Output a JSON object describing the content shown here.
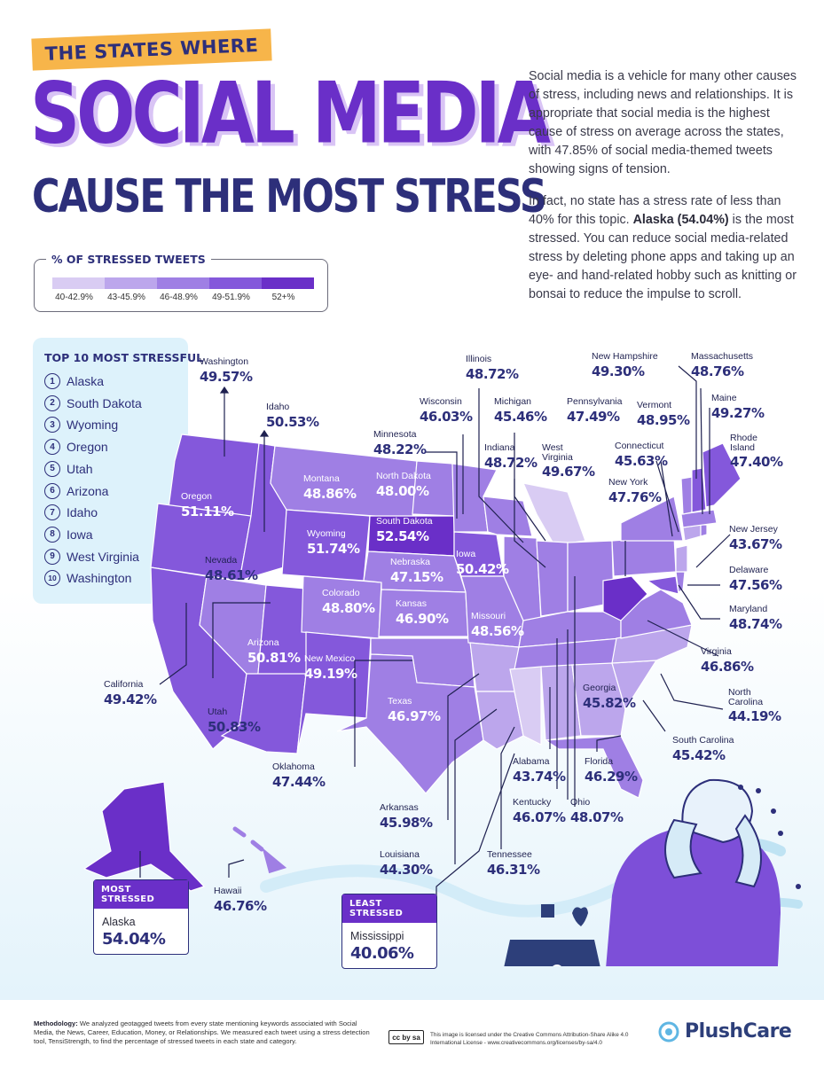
{
  "header": {
    "kicker": "THE STATES WHERE",
    "title": "SOCIAL MEDIA",
    "subtitle": "CAUSE THE MOST STRESS"
  },
  "intro": {
    "p1": "Social media is a vehicle for many other causes of stress, including news and relationships. It is appropriate that social media is the highest cause of stress on average across the states, with 47.85% of social media-themed tweets showing signs of tension.",
    "p2_a": "In fact, no state has a stress rate of less than 40% for this topic. ",
    "p2_bold": "Alaska (54.04%)",
    "p2_b": " is the most stressed. You can reduce social media-related stress by deleting phone apps and taking up an eye- and hand-related hobby such as knitting or bonsai to reduce the impulse to scroll."
  },
  "legend": {
    "title": "% OF STRESSED TWEETS",
    "bins": [
      {
        "label": "40-42.9%",
        "color": "#d9ccf3"
      },
      {
        "label": "43-45.9%",
        "color": "#bca6ec"
      },
      {
        "label": "46-48.9%",
        "color": "#9f7fe4"
      },
      {
        "label": "49-51.9%",
        "color": "#8458db"
      },
      {
        "label": "52+%",
        "color": "#6a2fc8"
      }
    ]
  },
  "top10": {
    "title": "TOP 10 MOST STRESSFUL",
    "items": [
      {
        "rank": "1",
        "name": "Alaska"
      },
      {
        "rank": "2",
        "name": "South Dakota"
      },
      {
        "rank": "3",
        "name": "Wyoming"
      },
      {
        "rank": "4",
        "name": "Oregon"
      },
      {
        "rank": "5",
        "name": "Utah"
      },
      {
        "rank": "6",
        "name": "Arizona"
      },
      {
        "rank": "7",
        "name": "Idaho"
      },
      {
        "rank": "8",
        "name": "Iowa"
      },
      {
        "rank": "9",
        "name": "West Virginia"
      },
      {
        "rank": "10",
        "name": "Washington"
      }
    ]
  },
  "states": {
    "washington": {
      "name": "Washington",
      "value": "49.57%"
    },
    "idaho": {
      "name": "Idaho",
      "value": "50.53%"
    },
    "oregon": {
      "name": "Oregon",
      "value": "51.11%"
    },
    "montana": {
      "name": "Montana",
      "value": "48.86%"
    },
    "wyoming": {
      "name": "Wyoming",
      "value": "51.74%"
    },
    "nevada": {
      "name": "Nevada",
      "value": "48.61%"
    },
    "california": {
      "name": "California",
      "value": "49.42%"
    },
    "utah": {
      "name": "Utah",
      "value": "50.83%"
    },
    "arizona": {
      "name": "Arizona",
      "value": "50.81%"
    },
    "colorado": {
      "name": "Colorado",
      "value": "48.80%"
    },
    "new_mexico": {
      "name": "New Mexico",
      "value": "49.19%"
    },
    "north_dakota": {
      "name": "North Dakota",
      "value": "48.00%"
    },
    "south_dakota": {
      "name": "South Dakota",
      "value": "52.54%"
    },
    "nebraska": {
      "name": "Nebraska",
      "value": "47.15%"
    },
    "kansas": {
      "name": "Kansas",
      "value": "46.90%"
    },
    "oklahoma": {
      "name": "Oklahoma",
      "value": "47.44%"
    },
    "texas": {
      "name": "Texas",
      "value": "46.97%"
    },
    "minnesota": {
      "name": "Minnesota",
      "value": "48.22%"
    },
    "iowa": {
      "name": "Iowa",
      "value": "50.42%"
    },
    "missouri": {
      "name": "Missouri",
      "value": "48.56%"
    },
    "arkansas": {
      "name": "Arkansas",
      "value": "45.98%"
    },
    "louisiana": {
      "name": "Louisiana",
      "value": "44.30%"
    },
    "wisconsin": {
      "name": "Wisconsin",
      "value": "46.03%"
    },
    "illinois": {
      "name": "Illinois",
      "value": "48.72%"
    },
    "michigan": {
      "name": "Michigan",
      "value": "45.46%"
    },
    "indiana": {
      "name": "Indiana",
      "value": "48.72%"
    },
    "tennessee": {
      "name": "Tennessee",
      "value": "46.31%"
    },
    "mississippi": {
      "name": "Mississippi",
      "value": "40.06%"
    },
    "alabama": {
      "name": "Alabama",
      "value": "43.74%"
    },
    "kentucky": {
      "name": "Kentucky",
      "value": "46.07%"
    },
    "ohio": {
      "name": "Ohio",
      "value": "48.07%"
    },
    "georgia": {
      "name": "Georgia",
      "value": "45.82%"
    },
    "florida": {
      "name": "Florida",
      "value": "46.29%"
    },
    "south_carolina": {
      "name": "South Carolina",
      "value": "45.42%"
    },
    "north_carolina": {
      "name": "North Carolina",
      "value": "44.19%"
    },
    "virginia": {
      "name": "Virginia",
      "value": "46.86%"
    },
    "west_virginia": {
      "name": "West Virginia",
      "value": "49.67%"
    },
    "pennsylvania": {
      "name": "Pennsylvania",
      "value": "47.49%"
    },
    "new_york": {
      "name": "New York",
      "value": "47.76%"
    },
    "maryland": {
      "name": "Maryland",
      "value": "48.74%"
    },
    "delaware": {
      "name": "Delaware",
      "value": "47.56%"
    },
    "new_jersey": {
      "name": "New Jersey",
      "value": "43.67%"
    },
    "connecticut": {
      "name": "Connecticut",
      "value": "45.63%"
    },
    "rhode_island": {
      "name": "Rhode Island",
      "value": "47.40%"
    },
    "massachusetts": {
      "name": "Massachusetts",
      "value": "48.76%"
    },
    "vermont": {
      "name": "Vermont",
      "value": "48.95%"
    },
    "new_hampshire": {
      "name": "New Hampshire",
      "value": "49.30%"
    },
    "maine": {
      "name": "Maine",
      "value": "49.27%"
    },
    "hawaii": {
      "name": "Hawaii",
      "value": "46.76%"
    },
    "alaska": {
      "name": "Alaska",
      "value": "54.04%"
    }
  },
  "badges": {
    "most": {
      "head": "MOST STRESSED",
      "state": "Alaska",
      "value": "54.04%"
    },
    "least": {
      "head": "LEAST STRESSED",
      "state": "Mississippi",
      "value": "40.06%"
    }
  },
  "footer": {
    "method_bold": "Methodology:",
    "method_text": " We analyzed geotagged tweets from every state mentioning keywords associated with Social Media, the News, Career, Education, Money, or Relationships. We measured each tweet using a stress detection tool, TensiStrength, to find the percentage of stressed tweets in each state and category.",
    "cc_label": "cc by sa",
    "license": "This image is licensed under the Creative Commons Attribution-Share Alike 4.0 International License - www.creativecommons.org/licenses/by-sa/4.0",
    "brand": "PlushCare"
  },
  "colors": {
    "navy": "#2d2f7a",
    "purple": "#6a2fc8",
    "orange": "#f7b54a",
    "light_blue": "#ddf2fb"
  }
}
